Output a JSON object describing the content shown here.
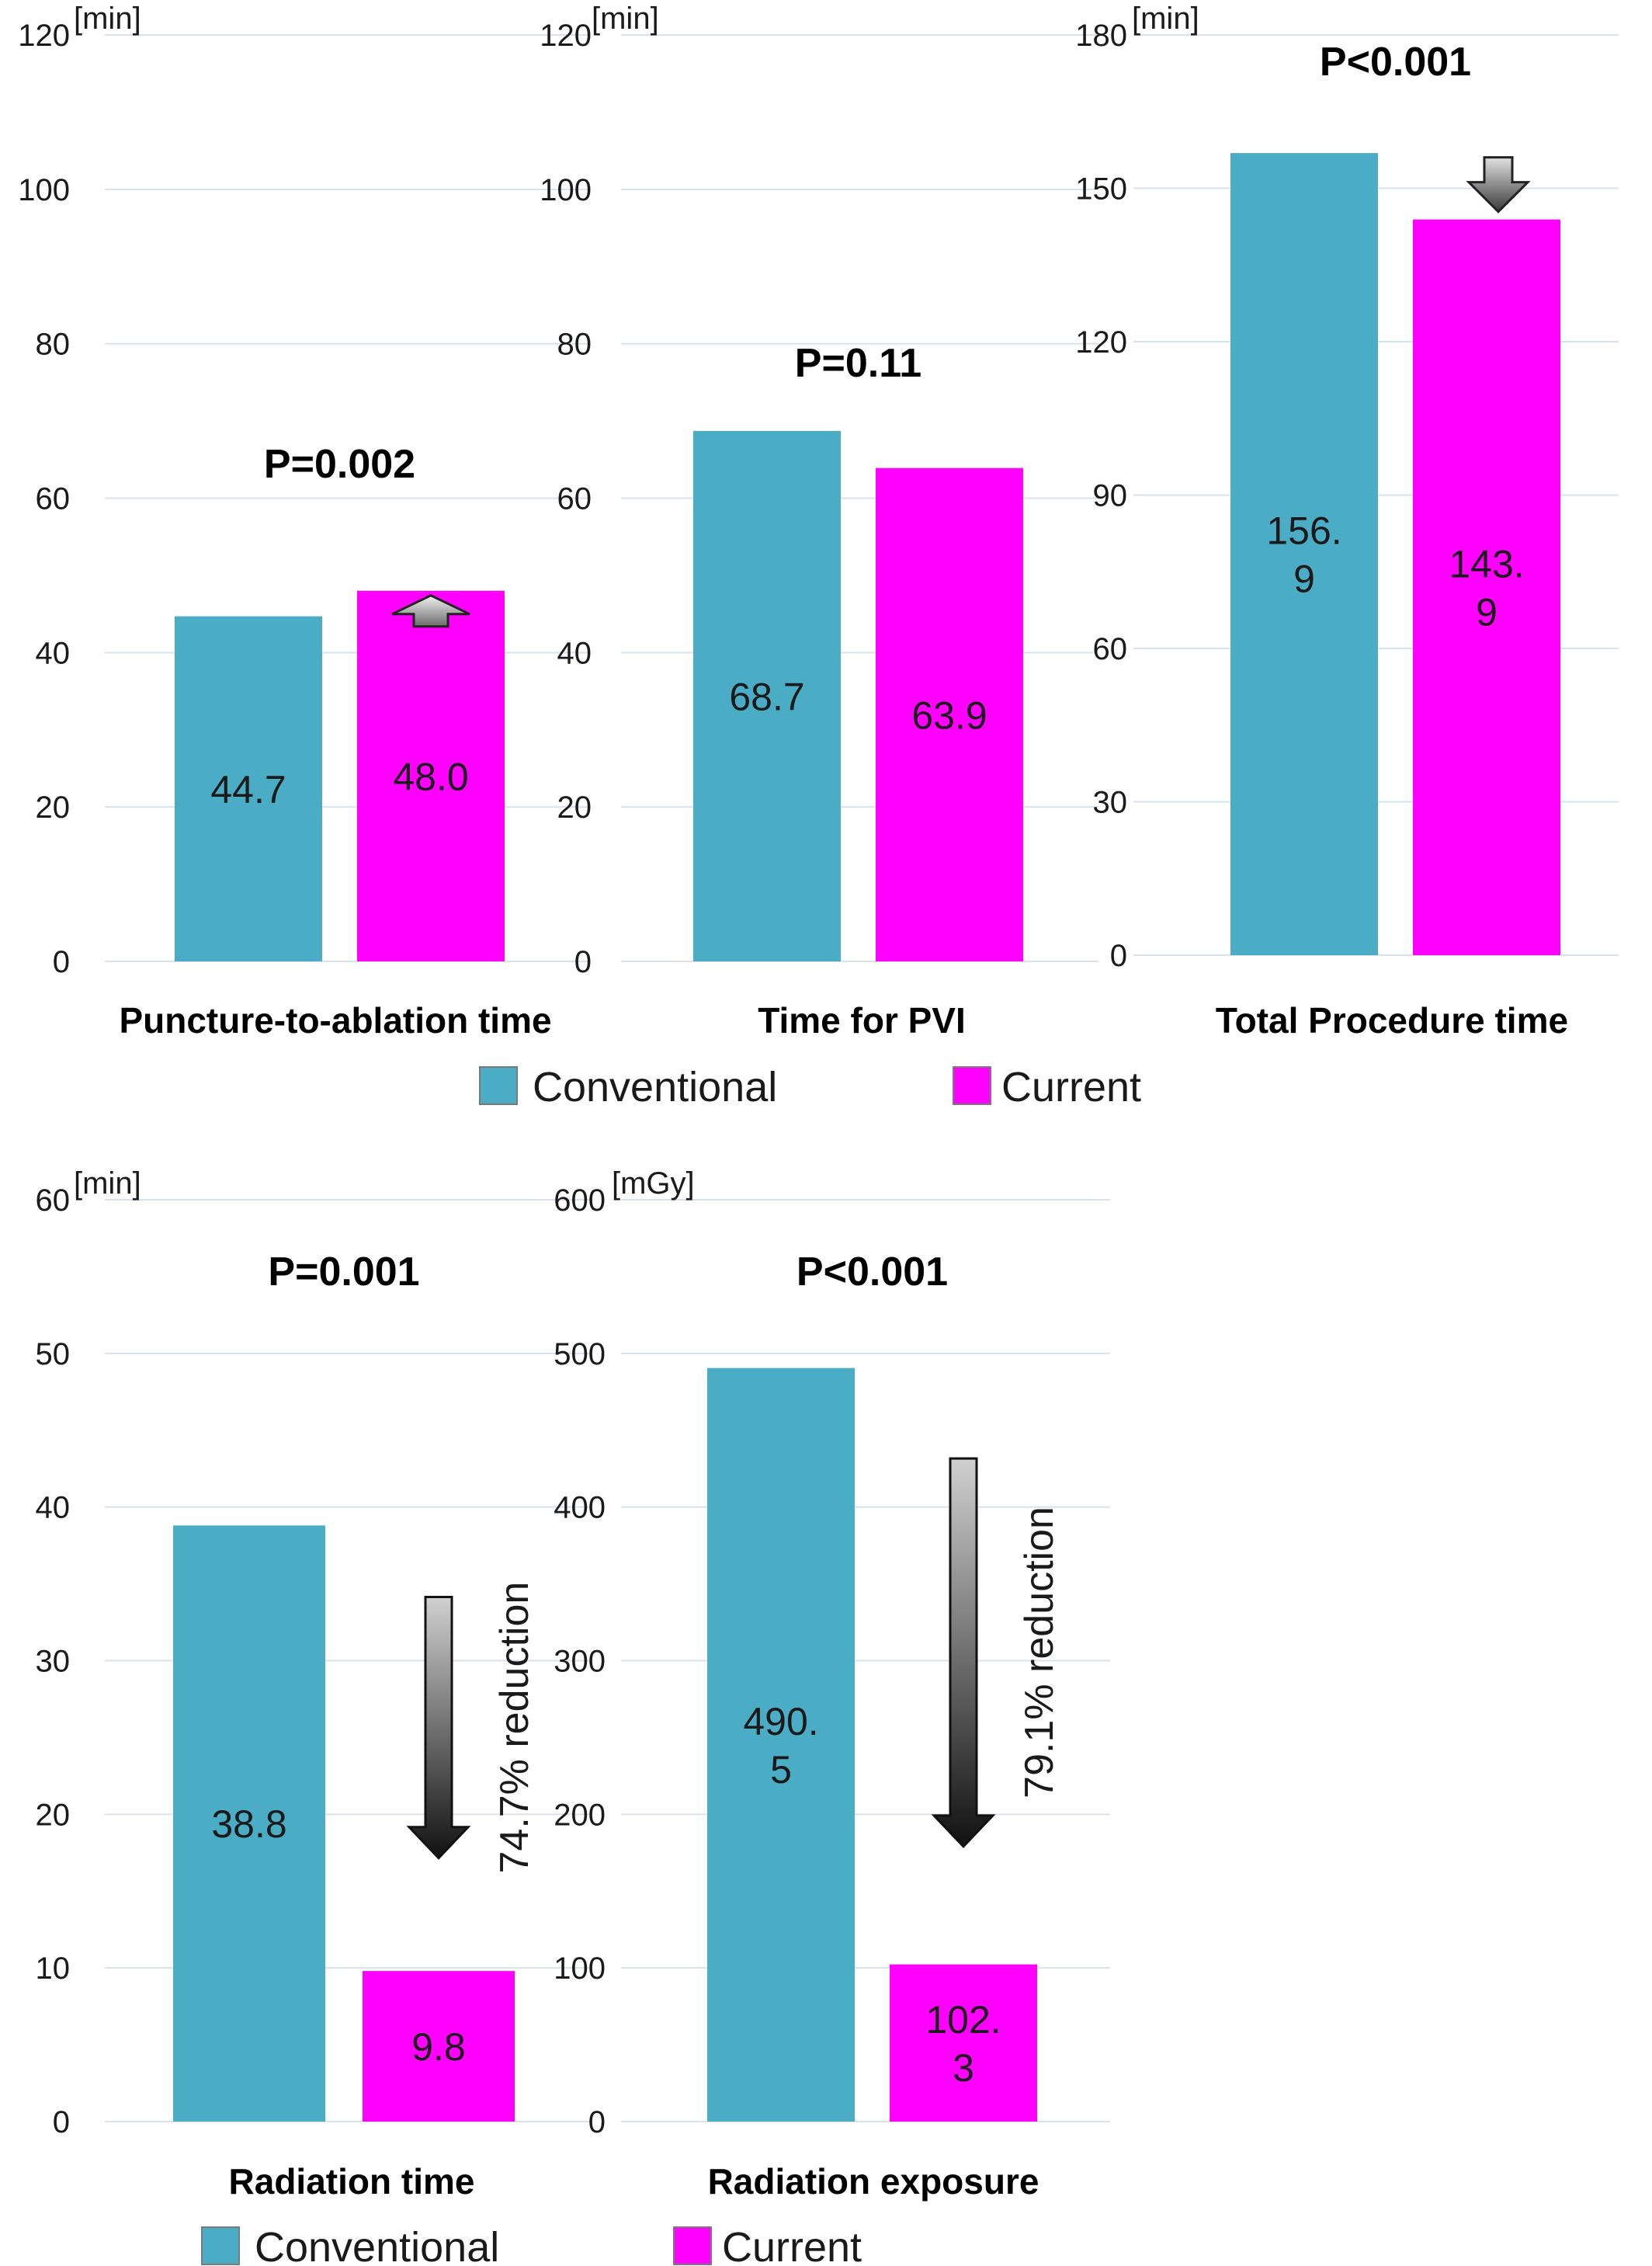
{
  "colors": {
    "conventional": "#4BACC6",
    "current": "#FF00FF",
    "grid": "#D9E2EC"
  },
  "legends": [
    {
      "items": [
        {
          "label": "Conventional",
          "color": "#4BACC6"
        },
        {
          "label": "Current",
          "color": "#FF00FF"
        }
      ]
    },
    {
      "items": [
        {
          "label": "Conventional",
          "color": "#4BACC6"
        },
        {
          "label": "Current",
          "color": "#FF00FF"
        }
      ]
    }
  ],
  "chart_data": [
    {
      "type": "bar",
      "xlabel": "Puncture-to-ablation time",
      "unit": "[min]",
      "annotation": "P=0.002",
      "ylim": [
        0,
        120
      ],
      "yticks": [
        "0",
        "20",
        "40",
        "60",
        "80",
        "100",
        "120"
      ],
      "categories": [
        "Conventional",
        "Current"
      ],
      "values": [
        44.7,
        48.0
      ],
      "labels": [
        [
          "44.7"
        ],
        [
          "48.0"
        ]
      ],
      "arrow": "small-up-on-current",
      "grid": true
    },
    {
      "type": "bar",
      "xlabel": "Time for PVI",
      "unit": "[min]",
      "annotation": "P=0.11",
      "ylim": [
        0,
        120
      ],
      "yticks": [
        "0",
        "20",
        "40",
        "60",
        "80",
        "100",
        "120"
      ],
      "categories": [
        "Conventional",
        "Current"
      ],
      "values": [
        68.7,
        63.9
      ],
      "labels": [
        [
          "68.7"
        ],
        [
          "63.9"
        ]
      ],
      "arrow": "none",
      "grid": true
    },
    {
      "type": "bar",
      "xlabel": "Total Procedure time",
      "unit": "[min]",
      "annotation": "P<0.001",
      "ylim": [
        0,
        180
      ],
      "yticks": [
        "0",
        "30",
        "60",
        "90",
        "120",
        "150",
        "180"
      ],
      "categories": [
        "Conventional",
        "Current"
      ],
      "values": [
        156.9,
        143.9
      ],
      "labels": [
        [
          "156.",
          "9"
        ],
        [
          "143.",
          "9"
        ]
      ],
      "arrow": "small-down-on-current",
      "grid": true
    },
    {
      "type": "bar",
      "xlabel": "Radiation time",
      "unit": "[min]",
      "annotation": "P=0.001",
      "ylim": [
        0,
        60
      ],
      "yticks": [
        "0",
        "10",
        "20",
        "30",
        "40",
        "50",
        "60"
      ],
      "categories": [
        "Conventional",
        "Current"
      ],
      "values": [
        38.8,
        9.8
      ],
      "labels": [
        [
          "38.8"
        ],
        [
          "9.8"
        ]
      ],
      "arrow": "long-down",
      "reduction_label": "74.7% reduction",
      "grid": true
    },
    {
      "type": "bar",
      "xlabel": "Radiation exposure",
      "unit": "[mGy]",
      "annotation": "P<0.001",
      "ylim": [
        0,
        600
      ],
      "yticks": [
        "0",
        "100",
        "200",
        "300",
        "400",
        "500",
        "600"
      ],
      "categories": [
        "Conventional",
        "Current"
      ],
      "values": [
        490.5,
        102.3
      ],
      "labels": [
        [
          "490.",
          "5"
        ],
        [
          "102.",
          "3"
        ]
      ],
      "arrow": "long-down",
      "reduction_label": "79.1% reduction",
      "grid": true
    }
  ]
}
